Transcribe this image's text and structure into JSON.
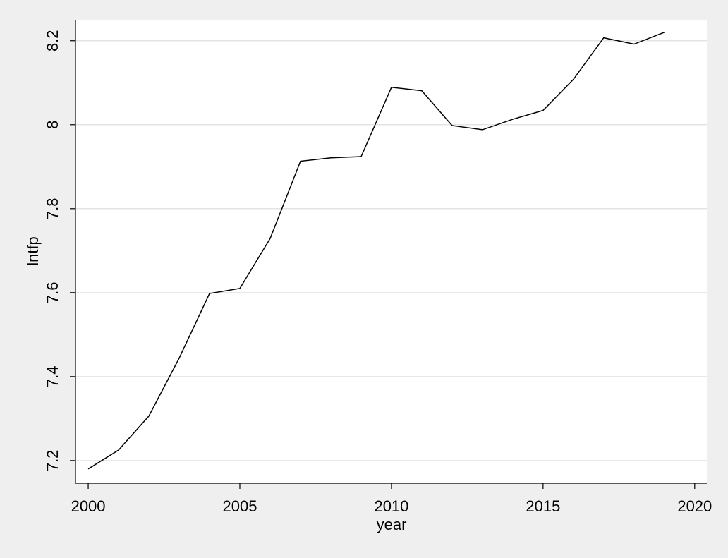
{
  "chart_data": {
    "type": "line",
    "x_label": "year",
    "y_label": "lntfp",
    "x": [
      2000,
      2001,
      2002,
      2003,
      2004,
      2005,
      2006,
      2007,
      2008,
      2009,
      2010,
      2011,
      2012,
      2013,
      2014,
      2015,
      2016,
      2017,
      2018,
      2019
    ],
    "series": [
      {
        "name": "lntfp",
        "color": "#000000",
        "values": [
          7.18,
          7.225,
          7.306,
          7.444,
          7.598,
          7.61,
          7.729,
          7.913,
          7.921,
          7.924,
          8.089,
          8.081,
          7.998,
          7.988,
          8.013,
          8.034,
          8.108,
          8.207,
          8.192,
          8.22
        ]
      }
    ],
    "xlim": [
      1999.58,
      2020.4
    ],
    "xticks": [
      2000,
      2005,
      2010,
      2015,
      2020
    ],
    "ylim": [
      7.146,
      8.25
    ],
    "yticks": [
      7.2,
      7.4,
      7.6,
      7.8,
      8,
      8.2
    ],
    "grid": true
  }
}
